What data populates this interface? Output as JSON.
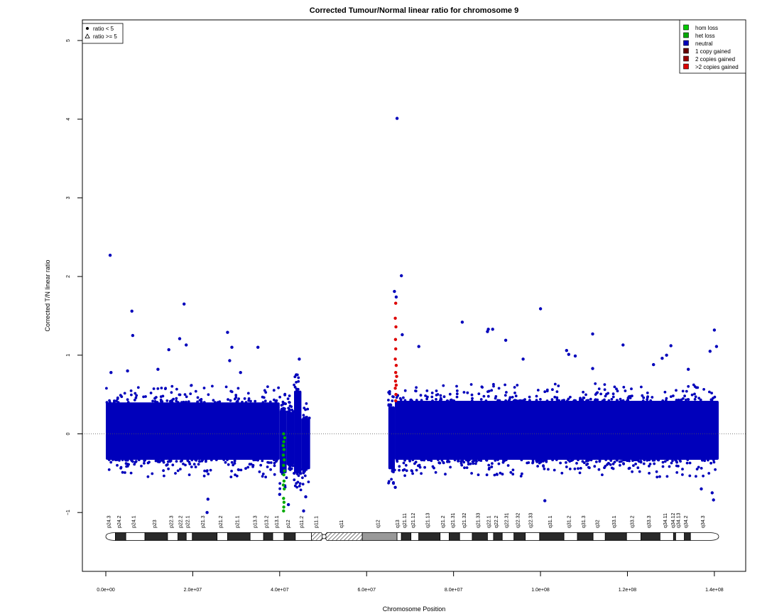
{
  "chart_data": {
    "type": "scatter",
    "title": "Corrected Tumour/Normal linear ratio for chromosome  9",
    "xlabel": "Chromosome Position",
    "ylabel": "Corrected T/N linear ratio",
    "xlim": [
      -5000000,
      147000000
    ],
    "ylim": [
      -1.75,
      5.25
    ],
    "x_ticks": [
      0,
      20000000,
      40000000,
      60000000,
      80000000,
      100000000,
      120000000,
      140000000
    ],
    "x_tick_labels": [
      "0.0e+00",
      "2.0e+07",
      "4.0e+07",
      "6.0e+07",
      "8.0e+07",
      "1.0e+08",
      "1.2e+08",
      "1.4e+08"
    ],
    "y_ticks": [
      -1,
      0,
      1,
      2,
      3,
      4,
      5
    ],
    "y_tick_labels": [
      "−1",
      "0",
      "1",
      "2",
      "3",
      "4",
      "5"
    ],
    "reference_line": 0,
    "shape_legend": {
      "placement": "top-left",
      "entries": [
        {
          "label": "ratio < 5",
          "symbol": "dot"
        },
        {
          "label": "ratio >= 5",
          "symbol": "triangle"
        }
      ]
    },
    "color_legend": {
      "placement": "top-right",
      "entries": [
        {
          "label": "hom loss",
          "color": "#00cc00"
        },
        {
          "label": "het loss",
          "color": "#00aa00"
        },
        {
          "label": "neutral",
          "color": "#0000bb"
        },
        {
          "label": "1 copy gained",
          "color": "#660000"
        },
        {
          "label": "2 copies gained",
          "color": "#990000"
        },
        {
          "label": ">2 copies gained",
          "color": "#dd0000"
        }
      ]
    },
    "dense_regions": [
      {
        "x_start": 0,
        "x_end": 40000000,
        "y_low": -0.33,
        "y_high": 0.4,
        "status": "neutral"
      },
      {
        "x_start": 40000000,
        "x_end": 41600000,
        "y_low": -0.5,
        "y_high": 0.3,
        "status": "neutral"
      },
      {
        "x_start": 41600000,
        "x_end": 43300000,
        "y_low": -0.4,
        "y_high": 0.28,
        "status": "neutral"
      },
      {
        "x_start": 43300000,
        "x_end": 45000000,
        "y_low": -0.5,
        "y_high": 0.55,
        "status": "neutral"
      },
      {
        "x_start": 45000000,
        "x_end": 47000000,
        "y_low": -0.45,
        "y_high": 0.2,
        "status": "neutral"
      },
      {
        "x_start": 65000000,
        "x_end": 66500000,
        "y_low": -0.45,
        "y_high": 0.35,
        "status": "neutral"
      },
      {
        "x_start": 66500000,
        "x_end": 141000000,
        "y_low": -0.33,
        "y_high": 0.42,
        "status": "neutral"
      }
    ],
    "highlight_points": [
      {
        "x": 1000000,
        "y": 2.27,
        "status": "neutral"
      },
      {
        "x": 6000000,
        "y": 1.56,
        "status": "neutral"
      },
      {
        "x": 6200000,
        "y": 1.25,
        "status": "neutral"
      },
      {
        "x": 1200000,
        "y": 0.78,
        "status": "neutral"
      },
      {
        "x": 5000000,
        "y": 0.8,
        "status": "neutral"
      },
      {
        "x": 12000000,
        "y": 0.82,
        "status": "neutral"
      },
      {
        "x": 14500000,
        "y": 1.07,
        "status": "neutral"
      },
      {
        "x": 17000000,
        "y": 1.21,
        "status": "neutral"
      },
      {
        "x": 18000000,
        "y": 1.65,
        "status": "neutral"
      },
      {
        "x": 18500000,
        "y": 1.13,
        "status": "neutral"
      },
      {
        "x": 28000000,
        "y": 1.29,
        "status": "neutral"
      },
      {
        "x": 29000000,
        "y": 1.1,
        "status": "neutral"
      },
      {
        "x": 28500000,
        "y": 0.93,
        "status": "neutral"
      },
      {
        "x": 35000000,
        "y": 1.1,
        "status": "neutral"
      },
      {
        "x": 31000000,
        "y": 0.78,
        "status": "neutral"
      },
      {
        "x": 23500000,
        "y": -0.83,
        "status": "neutral"
      },
      {
        "x": 23300000,
        "y": -1.0,
        "status": "neutral"
      },
      {
        "x": 44500000,
        "y": 0.95,
        "status": "neutral"
      },
      {
        "x": 43800000,
        "y": 0.75,
        "status": "neutral"
      },
      {
        "x": 40000000,
        "y": -0.77,
        "status": "neutral"
      },
      {
        "x": 42000000,
        "y": -0.9,
        "status": "neutral"
      },
      {
        "x": 46000000,
        "y": -0.8,
        "status": "neutral"
      },
      {
        "x": 45500000,
        "y": -0.98,
        "status": "neutral"
      },
      {
        "x": 67000000,
        "y": 4.01,
        "status": "neutral"
      },
      {
        "x": 68000000,
        "y": 2.01,
        "status": "neutral"
      },
      {
        "x": 66400000,
        "y": 1.81,
        "status": "neutral"
      },
      {
        "x": 66800000,
        "y": 1.74,
        "status": "neutral"
      },
      {
        "x": 68200000,
        "y": 1.26,
        "status": "neutral"
      },
      {
        "x": 72000000,
        "y": 1.11,
        "status": "neutral"
      },
      {
        "x": 66600000,
        "y": -0.68,
        "status": "neutral"
      },
      {
        "x": 82000000,
        "y": 1.42,
        "status": "neutral"
      },
      {
        "x": 88000000,
        "y": 1.33,
        "status": "neutral"
      },
      {
        "x": 89000000,
        "y": 1.33,
        "status": "neutral"
      },
      {
        "x": 87800000,
        "y": 1.3,
        "status": "neutral"
      },
      {
        "x": 92000000,
        "y": 1.19,
        "status": "neutral"
      },
      {
        "x": 96000000,
        "y": 0.95,
        "status": "neutral"
      },
      {
        "x": 100000000,
        "y": 1.59,
        "status": "neutral"
      },
      {
        "x": 101000000,
        "y": -0.85,
        "status": "neutral"
      },
      {
        "x": 106000000,
        "y": 1.06,
        "status": "neutral"
      },
      {
        "x": 106500000,
        "y": 1.01,
        "status": "neutral"
      },
      {
        "x": 108000000,
        "y": 0.99,
        "status": "neutral"
      },
      {
        "x": 112000000,
        "y": 1.27,
        "status": "neutral"
      },
      {
        "x": 112000000,
        "y": 0.83,
        "status": "neutral"
      },
      {
        "x": 119000000,
        "y": 1.13,
        "status": "neutral"
      },
      {
        "x": 126000000,
        "y": 0.88,
        "status": "neutral"
      },
      {
        "x": 128000000,
        "y": 0.96,
        "status": "neutral"
      },
      {
        "x": 129000000,
        "y": 1.0,
        "status": "neutral"
      },
      {
        "x": 130000000,
        "y": 1.12,
        "status": "neutral"
      },
      {
        "x": 134000000,
        "y": 0.82,
        "status": "neutral"
      },
      {
        "x": 139000000,
        "y": 1.05,
        "status": "neutral"
      },
      {
        "x": 140000000,
        "y": 1.32,
        "status": "neutral"
      },
      {
        "x": 140500000,
        "y": 1.11,
        "status": "neutral"
      },
      {
        "x": 139500000,
        "y": -0.75,
        "status": "neutral"
      },
      {
        "x": 139800000,
        "y": -0.84,
        "status": "neutral"
      },
      {
        "x": 137000000,
        "y": -0.7,
        "status": "neutral"
      },
      {
        "x": 40900000,
        "y": 0.0,
        "status": "het loss"
      },
      {
        "x": 40950000,
        "y": -0.1,
        "status": "het loss"
      },
      {
        "x": 41000000,
        "y": -0.2,
        "status": "het loss"
      },
      {
        "x": 40850000,
        "y": -0.27,
        "status": "het loss"
      },
      {
        "x": 41050000,
        "y": -0.33,
        "status": "het loss"
      },
      {
        "x": 40900000,
        "y": -0.4,
        "status": "het loss"
      },
      {
        "x": 41100000,
        "y": -0.47,
        "status": "het loss"
      },
      {
        "x": 40950000,
        "y": -0.52,
        "status": "het loss"
      },
      {
        "x": 41000000,
        "y": -0.6,
        "status": "het loss"
      },
      {
        "x": 40850000,
        "y": -0.65,
        "status": "het loss"
      },
      {
        "x": 41050000,
        "y": -0.7,
        "status": "het loss"
      },
      {
        "x": 40900000,
        "y": -0.82,
        "status": "het loss"
      },
      {
        "x": 41000000,
        "y": -0.87,
        "status": "het loss"
      },
      {
        "x": 40950000,
        "y": -0.93,
        "status": "het loss"
      },
      {
        "x": 40900000,
        "y": -0.98,
        "status": "het loss"
      },
      {
        "x": 40800000,
        "y": -0.15,
        "status": "het loss"
      },
      {
        "x": 41150000,
        "y": -0.05,
        "status": "het loss"
      },
      {
        "x": 66700000,
        "y": 1.66,
        "status": ">2 copies gained"
      },
      {
        "x": 66600000,
        "y": 1.47,
        "status": ">2 copies gained"
      },
      {
        "x": 66750000,
        "y": 1.36,
        "status": ">2 copies gained"
      },
      {
        "x": 66650000,
        "y": 1.2,
        "status": ">2 copies gained"
      },
      {
        "x": 66700000,
        "y": 1.08,
        "status": ">2 copies gained"
      },
      {
        "x": 66600000,
        "y": 0.95,
        "status": ">2 copies gained"
      },
      {
        "x": 66800000,
        "y": 0.87,
        "status": ">2 copies gained"
      },
      {
        "x": 66700000,
        "y": 0.78,
        "status": ">2 copies gained"
      },
      {
        "x": 66650000,
        "y": 0.67,
        "status": ">2 copies gained"
      },
      {
        "x": 66600000,
        "y": 0.58,
        "status": ">2 copies gained"
      },
      {
        "x": 66750000,
        "y": 0.5,
        "status": ">2 copies gained"
      },
      {
        "x": 66700000,
        "y": 0.42,
        "status": ">2 copies gained"
      },
      {
        "x": 66800000,
        "y": 0.62,
        "status": ">2 copies gained"
      },
      {
        "x": 66900000,
        "y": 0.73,
        "status": ">2 copies gained"
      }
    ],
    "ideogram": {
      "start": 0,
      "end": 141000000,
      "centromere": 50200000,
      "bands": [
        {
          "name": "p24.3",
          "start": 0,
          "end": 2200000,
          "stain": "gneg"
        },
        {
          "name": "p24.2",
          "start": 2200000,
          "end": 4600000,
          "stain": "gpos"
        },
        {
          "name": "p24.1",
          "start": 4600000,
          "end": 9000000,
          "stain": "gneg"
        },
        {
          "name": "p23",
          "start": 9000000,
          "end": 14200000,
          "stain": "gpos"
        },
        {
          "name": "p22.3",
          "start": 14200000,
          "end": 16600000,
          "stain": "gneg"
        },
        {
          "name": "p22.2",
          "start": 16600000,
          "end": 18500000,
          "stain": "gpos"
        },
        {
          "name": "p22.1",
          "start": 18500000,
          "end": 19900000,
          "stain": "gneg"
        },
        {
          "name": "p21.3",
          "start": 19900000,
          "end": 25600000,
          "stain": "gpos"
        },
        {
          "name": "p21.2",
          "start": 25600000,
          "end": 28000000,
          "stain": "gneg"
        },
        {
          "name": "p21.1",
          "start": 28000000,
          "end": 33200000,
          "stain": "gpos"
        },
        {
          "name": "p13.3",
          "start": 33200000,
          "end": 36300000,
          "stain": "gneg"
        },
        {
          "name": "p13.2",
          "start": 36300000,
          "end": 38400000,
          "stain": "gpos"
        },
        {
          "name": "p13.1",
          "start": 38400000,
          "end": 41000000,
          "stain": "gneg"
        },
        {
          "name": "p12",
          "start": 41000000,
          "end": 43600000,
          "stain": "gpos"
        },
        {
          "name": "p11.2",
          "start": 43600000,
          "end": 47300000,
          "stain": "gneg"
        },
        {
          "name": "p11.1",
          "start": 47300000,
          "end": 50200000,
          "stain": "acen"
        },
        {
          "name": "q11",
          "start": 50200000,
          "end": 59000000,
          "stain": "acen"
        },
        {
          "name": "q12",
          "start": 59000000,
          "end": 67000000,
          "stain": "gvar"
        },
        {
          "name": "q13",
          "start": 67000000,
          "end": 68000000,
          "stain": "gneg"
        },
        {
          "name": "q21.11",
          "start": 68000000,
          "end": 70200000,
          "stain": "gpos"
        },
        {
          "name": "q21.12",
          "start": 70200000,
          "end": 72000000,
          "stain": "gneg"
        },
        {
          "name": "q21.13",
          "start": 72000000,
          "end": 76900000,
          "stain": "gpos"
        },
        {
          "name": "q21.2",
          "start": 76900000,
          "end": 79000000,
          "stain": "gneg"
        },
        {
          "name": "q21.31",
          "start": 79000000,
          "end": 81400000,
          "stain": "gpos"
        },
        {
          "name": "q21.32",
          "start": 81400000,
          "end": 84300000,
          "stain": "gneg"
        },
        {
          "name": "q21.33",
          "start": 84300000,
          "end": 87800000,
          "stain": "gpos"
        },
        {
          "name": "q22.1",
          "start": 87800000,
          "end": 89200000,
          "stain": "gneg"
        },
        {
          "name": "q22.2",
          "start": 89200000,
          "end": 91200000,
          "stain": "gpos"
        },
        {
          "name": "q22.31",
          "start": 91200000,
          "end": 93900000,
          "stain": "gneg"
        },
        {
          "name": "q22.32",
          "start": 93900000,
          "end": 96500000,
          "stain": "gpos"
        },
        {
          "name": "q22.33",
          "start": 96500000,
          "end": 99800000,
          "stain": "gneg"
        },
        {
          "name": "q31.1",
          "start": 99800000,
          "end": 105400000,
          "stain": "gpos"
        },
        {
          "name": "q31.2",
          "start": 105400000,
          "end": 108500000,
          "stain": "gneg"
        },
        {
          "name": "q31.3",
          "start": 108500000,
          "end": 112100000,
          "stain": "gpos"
        },
        {
          "name": "q32",
          "start": 112100000,
          "end": 114900000,
          "stain": "gneg"
        },
        {
          "name": "q33.1",
          "start": 114900000,
          "end": 119800000,
          "stain": "gpos"
        },
        {
          "name": "q33.2",
          "start": 119800000,
          "end": 123100000,
          "stain": "gneg"
        },
        {
          "name": "q33.3",
          "start": 123100000,
          "end": 127500000,
          "stain": "gpos"
        },
        {
          "name": "q34.11",
          "start": 127500000,
          "end": 130600000,
          "stain": "gneg"
        },
        {
          "name": "q34.12",
          "start": 130600000,
          "end": 131100000,
          "stain": "gpos"
        },
        {
          "name": "q34.13",
          "start": 131100000,
          "end": 133100000,
          "stain": "gneg"
        },
        {
          "name": "q34.2",
          "start": 133100000,
          "end": 134500000,
          "stain": "gpos"
        },
        {
          "name": "q34.3",
          "start": 134500000,
          "end": 141000000,
          "stain": "gneg"
        }
      ]
    }
  }
}
